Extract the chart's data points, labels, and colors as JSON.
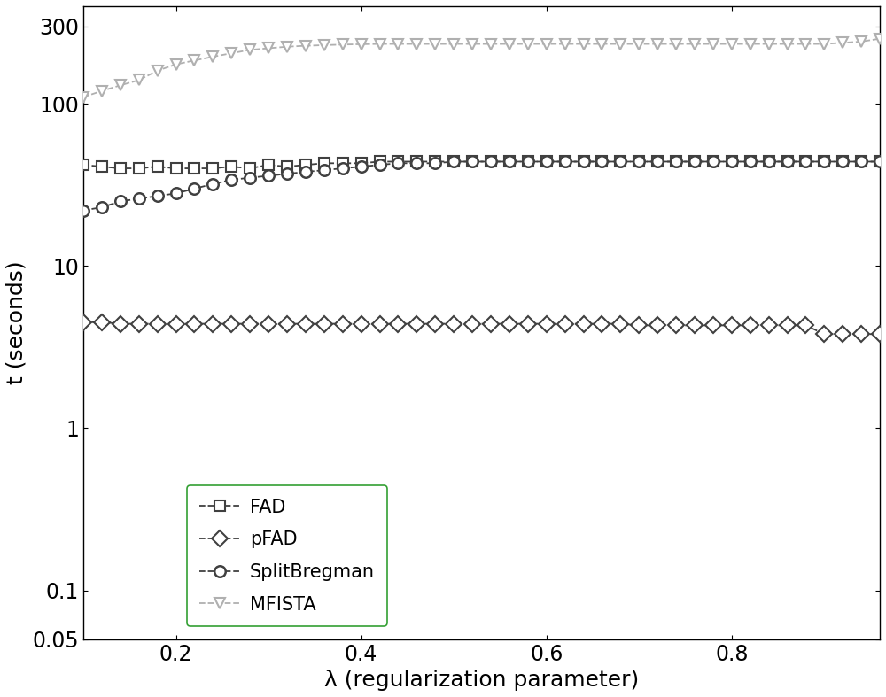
{
  "lambda_values": [
    0.1,
    0.12,
    0.14,
    0.16,
    0.18,
    0.2,
    0.22,
    0.24,
    0.26,
    0.28,
    0.3,
    0.32,
    0.34,
    0.36,
    0.38,
    0.4,
    0.42,
    0.44,
    0.46,
    0.48,
    0.5,
    0.52,
    0.54,
    0.56,
    0.58,
    0.6,
    0.62,
    0.64,
    0.66,
    0.68,
    0.7,
    0.72,
    0.74,
    0.76,
    0.78,
    0.8,
    0.82,
    0.84,
    0.86,
    0.88,
    0.9,
    0.92,
    0.94,
    0.96
  ],
  "FAD": [
    42,
    41,
    40,
    40,
    41,
    40,
    40,
    40,
    41,
    40,
    42,
    41,
    42,
    43,
    43,
    43,
    44,
    44,
    44,
    44,
    44,
    44,
    44,
    44,
    44,
    44,
    44,
    44,
    44,
    44,
    44,
    44,
    44,
    44,
    44,
    44,
    44,
    44,
    44,
    44,
    44,
    44,
    44,
    44
  ],
  "pFAD": [
    4.5,
    4.5,
    4.4,
    4.4,
    4.4,
    4.4,
    4.4,
    4.4,
    4.4,
    4.4,
    4.4,
    4.4,
    4.4,
    4.4,
    4.4,
    4.4,
    4.4,
    4.4,
    4.4,
    4.4,
    4.4,
    4.4,
    4.4,
    4.4,
    4.4,
    4.4,
    4.4,
    4.4,
    4.4,
    4.4,
    4.3,
    4.3,
    4.3,
    4.3,
    4.3,
    4.3,
    4.3,
    4.3,
    4.3,
    4.3,
    3.8,
    3.8,
    3.8,
    3.8
  ],
  "SplitBregman": [
    22,
    23,
    25,
    26,
    27,
    28,
    30,
    32,
    34,
    35,
    36,
    37,
    38,
    39,
    40,
    41,
    42,
    43,
    43,
    43,
    44,
    44,
    44,
    44,
    44,
    44,
    44,
    44,
    44,
    44,
    44,
    44,
    44,
    44,
    44,
    44,
    44,
    44,
    44,
    44,
    44,
    44,
    44,
    44
  ],
  "MFISTA": [
    110,
    120,
    130,
    140,
    160,
    175,
    185,
    195,
    205,
    215,
    220,
    225,
    228,
    230,
    232,
    233,
    234,
    234,
    234,
    234,
    234,
    234,
    234,
    234,
    234,
    234,
    234,
    234,
    234,
    234,
    234,
    234,
    234,
    234,
    234,
    234,
    234,
    234,
    234,
    234,
    234,
    238,
    242,
    252
  ],
  "FAD_color": "#404040",
  "pFAD_color": "#404040",
  "SplitBregman_color": "#404040",
  "MFISTA_color": "#b0b0b0",
  "xlabel": "λ (regularization parameter)",
  "ylabel": "t (seconds)",
  "xlim": [
    0.1,
    0.96
  ],
  "ylim": [
    0.05,
    400
  ],
  "xticks": [
    0.2,
    0.4,
    0.6,
    0.8
  ],
  "yticks_major": [
    0.05,
    0.1,
    1,
    10,
    100,
    300
  ],
  "ytick_labels": [
    "0.05",
    "0.1",
    "1",
    "10",
    "100",
    "300"
  ],
  "legend_entries": [
    "FAD",
    "pFAD",
    "SplitBregman",
    "MFISTA"
  ],
  "background_color": "#ffffff",
  "legend_border_color": "#008800"
}
